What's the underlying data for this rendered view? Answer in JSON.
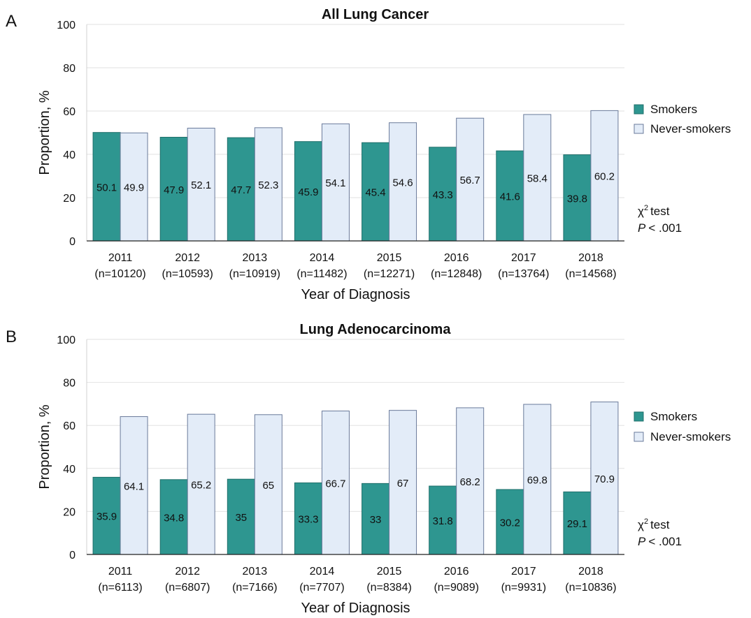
{
  "chart_data": [
    {
      "type": "bar",
      "panel": "A",
      "title": "All Lung Cancer",
      "xlabel": "Year of Diagnosis",
      "ylabel": "Proportion, %",
      "ylim": [
        0,
        100
      ],
      "yticks": [
        0,
        20,
        40,
        60,
        80,
        100
      ],
      "grid": true,
      "legend_position": "right",
      "categories": [
        "2011",
        "2012",
        "2013",
        "2014",
        "2015",
        "2016",
        "2017",
        "2018"
      ],
      "category_counts": [
        "(n=10120)",
        "(n=10593)",
        "(n=10919)",
        "(n=11482)",
        "(n=12271)",
        "(n=12848)",
        "(n=13764)",
        "(n=14568)"
      ],
      "series": [
        {
          "name": "Smokers",
          "color": "#2e9690",
          "values": [
            50.1,
            47.9,
            47.7,
            45.9,
            45.4,
            43.3,
            41.6,
            39.8
          ]
        },
        {
          "name": "Never-smokers",
          "color": "#e3ecf8",
          "values": [
            49.9,
            52.1,
            52.3,
            54.1,
            54.6,
            56.7,
            58.4,
            60.2
          ]
        }
      ],
      "stat_test": "χ",
      "stat_test_sup": "2",
      "stat_test_word": "test",
      "stat_p": "P",
      "stat_p_value": "< .001"
    },
    {
      "type": "bar",
      "panel": "B",
      "title": "Lung Adenocarcinoma",
      "xlabel": "Year of Diagnosis",
      "ylabel": "Proportion, %",
      "ylim": [
        0,
        100
      ],
      "yticks": [
        0,
        20,
        40,
        60,
        80,
        100
      ],
      "grid": true,
      "legend_position": "right",
      "categories": [
        "2011",
        "2012",
        "2013",
        "2014",
        "2015",
        "2016",
        "2017",
        "2018"
      ],
      "category_counts": [
        "(n=6113)",
        "(n=6807)",
        "(n=7166)",
        "(n=7707)",
        "(n=8384)",
        "(n=9089)",
        "(n=9931)",
        "(n=10836)"
      ],
      "series": [
        {
          "name": "Smokers",
          "color": "#2e9690",
          "values": [
            35.9,
            34.8,
            35.0,
            33.3,
            33.0,
            31.8,
            30.2,
            29.1
          ]
        },
        {
          "name": "Never-smokers",
          "color": "#e3ecf8",
          "values": [
            64.1,
            65.2,
            65.0,
            66.7,
            67.0,
            68.2,
            69.8,
            70.9
          ]
        }
      ],
      "stat_test": "χ",
      "stat_test_sup": "2",
      "stat_test_word": "test",
      "stat_p": "P",
      "stat_p_value": "< .001"
    }
  ]
}
